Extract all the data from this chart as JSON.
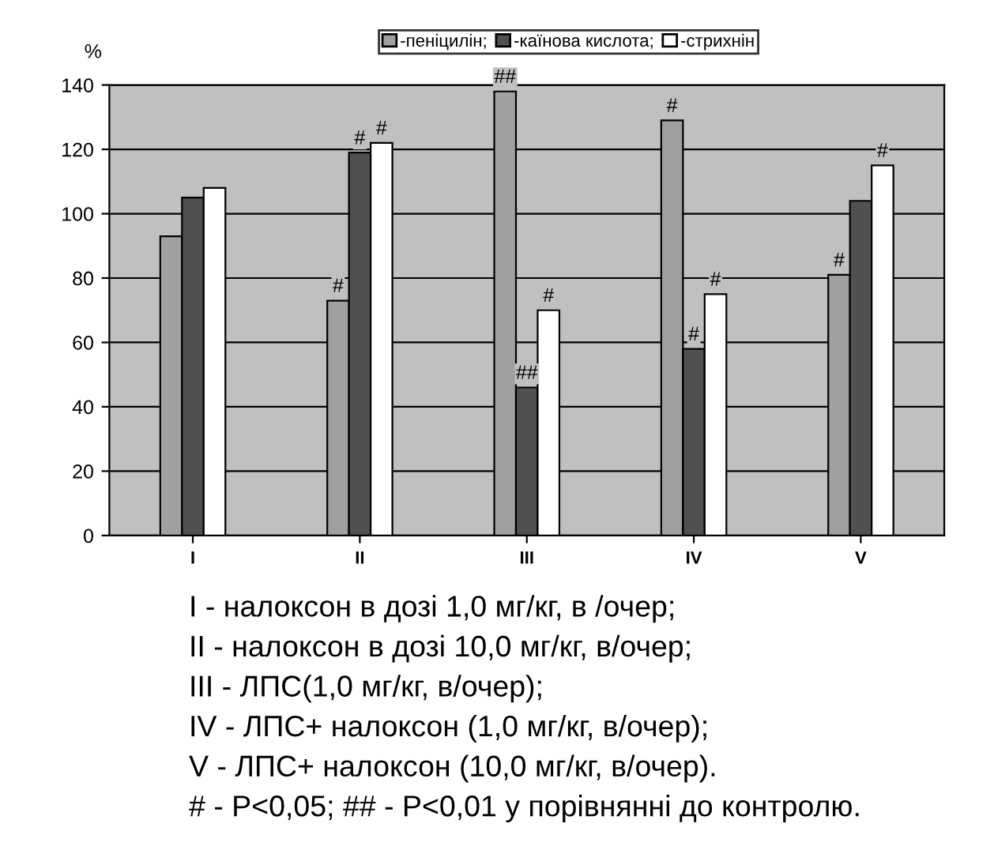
{
  "chart_data": {
    "type": "bar",
    "ylabel": "%",
    "categories": [
      "I",
      "II",
      "III",
      "IV",
      "V"
    ],
    "series": [
      {
        "name": "-пеніцилін;",
        "color": "#a0a0a0",
        "values": [
          93,
          73,
          138,
          129,
          81
        ],
        "value_labels": [
          null,
          "#",
          "##",
          "#",
          "#"
        ]
      },
      {
        "name": "-каїнова кислота;",
        "color": "#505050",
        "values": [
          105,
          119,
          46,
          58,
          104
        ],
        "value_labels": [
          null,
          "#",
          "##",
          "#",
          null
        ]
      },
      {
        "name": "-стрихнін",
        "color": "#ffffff",
        "values": [
          108,
          122,
          70,
          75,
          115
        ],
        "value_labels": [
          null,
          "#",
          "#",
          "#",
          "#"
        ]
      }
    ],
    "ylim": [
      0,
      140
    ],
    "yticks": [
      0,
      20,
      40,
      60,
      80,
      100,
      120,
      140
    ],
    "grid": "y",
    "legend": "top",
    "annotations": [
      "I - налоксон в дозі 1,0 мг/кг, в /очер;",
      "II - налоксон в дозі 10,0 мг/кг, в/очер;",
      "III - ЛПС(1,0 мг/кг, в/очер);",
      "IV - ЛПС+ налоксон (1,0 мг/кг, в/очер);",
      "V - ЛПС+ налоксон (10,0 мг/кг, в/очер).",
      "# - P<0,05; ## - P<0,01 у порівнянні до контролю."
    ]
  }
}
